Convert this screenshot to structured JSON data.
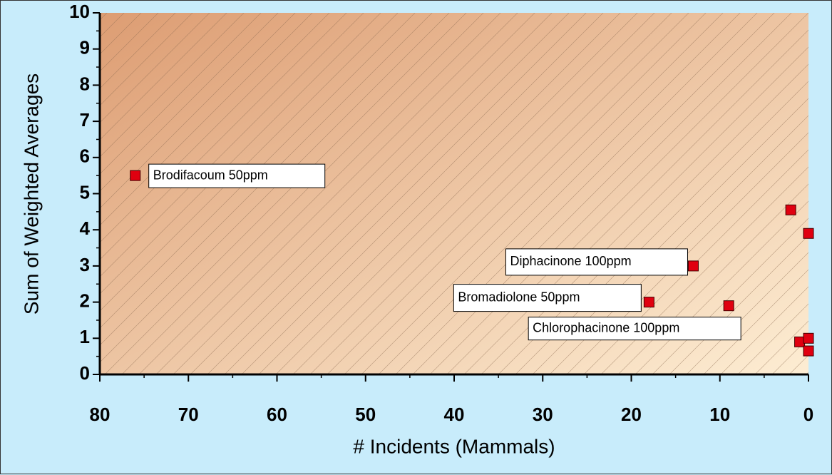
{
  "chart_data": {
    "type": "scatter",
    "x_label": "# Incidents (Mammals)",
    "y_label": "Sum of Weighted Averages",
    "x": [
      76,
      2,
      0,
      13,
      18,
      9,
      1,
      0,
      0
    ],
    "values": [
      5.5,
      4.55,
      3.9,
      3.0,
      2.0,
      1.9,
      0.9,
      1.0,
      0.65
    ],
    "labels": [
      "Brodifacoum 50ppm",
      null,
      null,
      "Diphacinone 100ppm",
      "Bromadiolone 50ppm",
      "Chlorophacinone 100ppm",
      null,
      null,
      null
    ],
    "color": "#e00010",
    "xlim": [
      80,
      0
    ],
    "xticks": [
      80,
      70,
      60,
      50,
      40,
      30,
      20,
      10,
      0
    ],
    "ylim": [
      0,
      10
    ],
    "yticks": [
      0,
      1,
      2,
      3,
      4,
      5,
      6,
      7,
      8,
      9,
      10
    ]
  }
}
